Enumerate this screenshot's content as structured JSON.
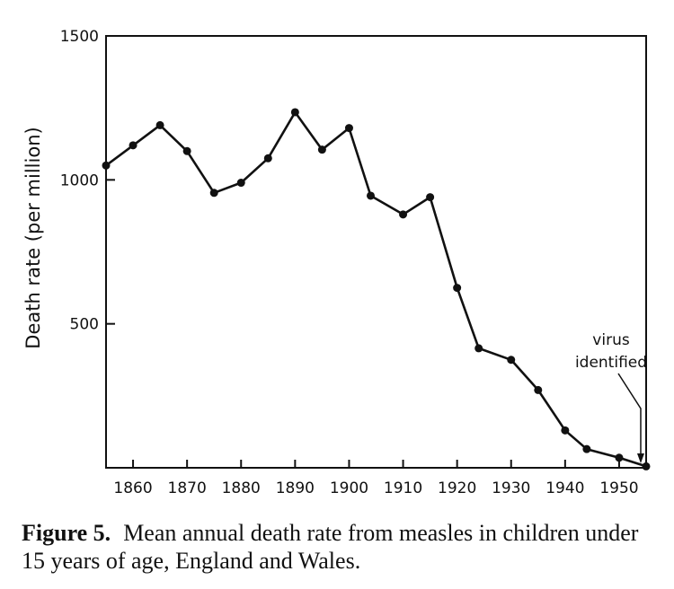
{
  "chart_data": {
    "type": "line",
    "ylabel": "Death rate  (per million)",
    "xlabel": "",
    "xlim": [
      1855,
      1955
    ],
    "ylim": [
      0,
      1500
    ],
    "x_ticks": [
      1860,
      1870,
      1880,
      1890,
      1900,
      1910,
      1920,
      1930,
      1940,
      1950
    ],
    "x_tick_labels": [
      "1860",
      "1870",
      "1880",
      "1890",
      "1900",
      "1910",
      "1920",
      "1930",
      "1940",
      "1950"
    ],
    "y_ticks": [
      500,
      1000,
      1500
    ],
    "y_tick_labels": [
      "500",
      "1000",
      "1500"
    ],
    "grid": false,
    "series": [
      {
        "x": [
          1855,
          1860,
          1865,
          1870,
          1875,
          1880,
          1885,
          1890,
          1895,
          1900,
          1904,
          1910,
          1915,
          1920,
          1924,
          1930,
          1935,
          1940,
          1944,
          1950,
          1955
        ],
        "y": [
          1050,
          1120,
          1190,
          1100,
          955,
          990,
          1075,
          1235,
          1105,
          1180,
          945,
          880,
          940,
          625,
          415,
          375,
          270,
          130,
          65,
          35,
          5
        ]
      }
    ],
    "annotation": {
      "lines": [
        "virus",
        "identified"
      ],
      "x": 1954
    }
  },
  "caption": {
    "label": "Figure 5.",
    "text": "Mean annual death rate from measles in children under 15 years of age, England and Wales."
  }
}
